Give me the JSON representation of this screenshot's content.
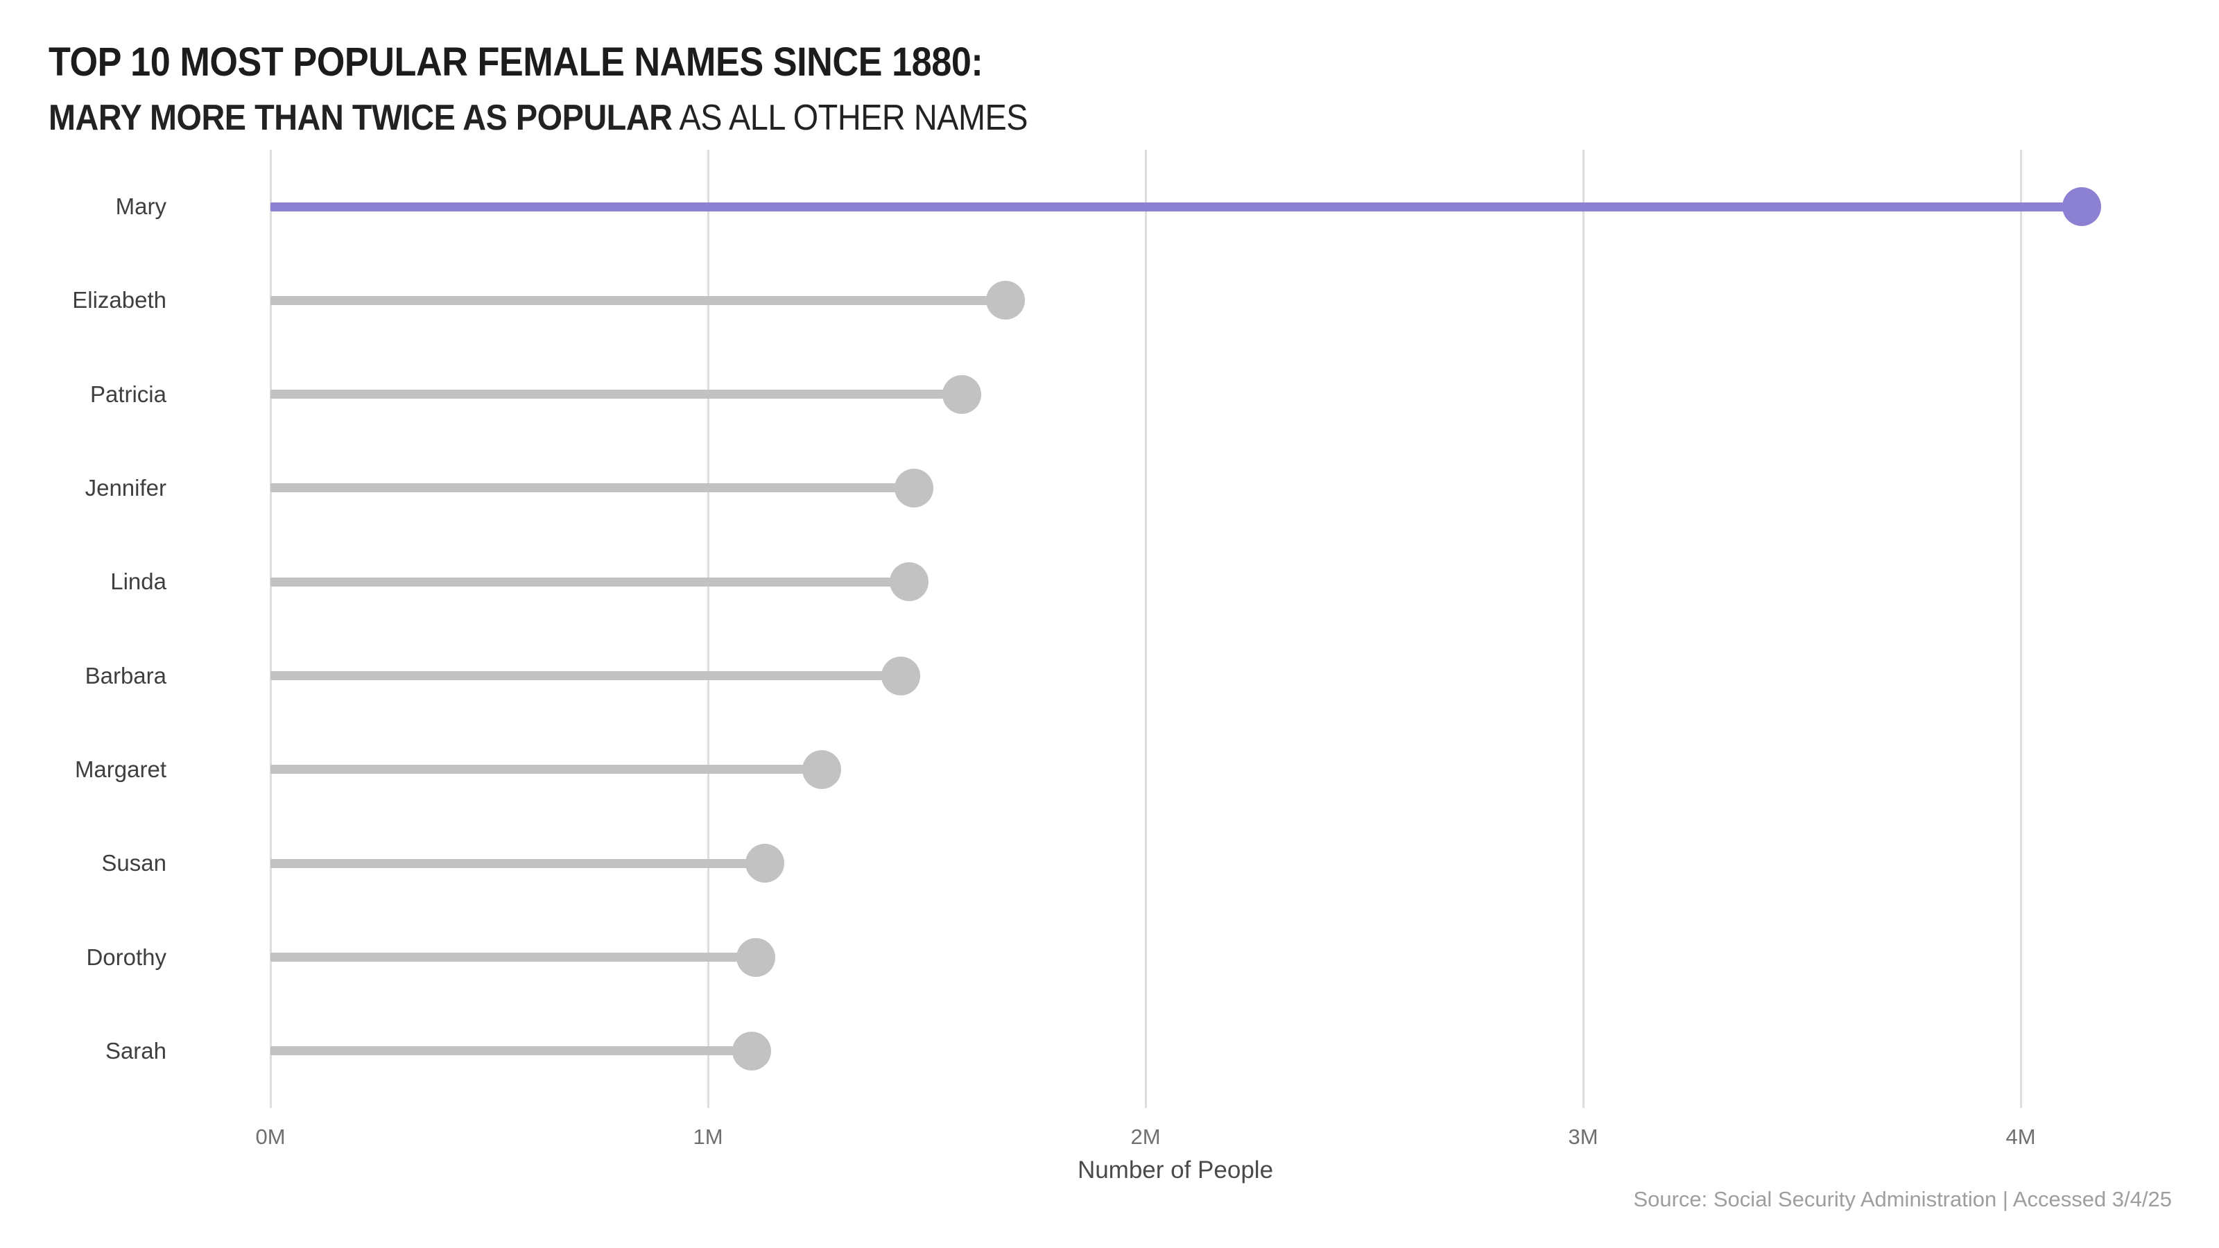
{
  "header": {
    "title": "TOP 10 MOST POPULAR FEMALE NAMES SINCE 1880:",
    "subtitle_highlight": "MARY MORE THAN TWICE AS POPULAR",
    "subtitle_rest": " AS ALL OTHER NAMES"
  },
  "chart_data": {
    "type": "bar",
    "style": "horizontal-lollipop",
    "title": "TOP 10 MOST POPULAR FEMALE NAMES SINCE 1880: MARY MORE THAN TWICE AS POPULAR AS ALL OTHER NAMES",
    "categories": [
      "Mary",
      "Elizabeth",
      "Patricia",
      "Jennifer",
      "Linda",
      "Barbara",
      "Margaret",
      "Susan",
      "Dorothy",
      "Sarah"
    ],
    "values": [
      4.14,
      1.68,
      1.58,
      1.47,
      1.46,
      1.44,
      1.26,
      1.13,
      1.11,
      1.1
    ],
    "unit": "millions of people",
    "highlight_category": "Mary",
    "highlight_index": 0,
    "xlabel": "Number of People",
    "ylabel": "",
    "x_tick_values": [
      0,
      1,
      2,
      3,
      4
    ],
    "x_tick_labels": [
      "0M",
      "1M",
      "2M",
      "3M",
      "4M"
    ],
    "xlim": [
      0,
      4.3
    ],
    "grid": "vertical-only",
    "legend": "none",
    "colors": {
      "highlight": "#8b80d1",
      "default": "#c2c2c2",
      "gridline": "#dedede",
      "title_text": "#1c1c1c",
      "subtitle_highlight_text": "#8177cb",
      "category_label_text": "#3f3f3f",
      "tick_text": "#6f6f6f",
      "axis_label_text": "#4a4a4a",
      "source_text": "#9e9e9e"
    }
  },
  "footer": {
    "source": "Source: Social Security Administration | Accessed 3/4/25"
  }
}
